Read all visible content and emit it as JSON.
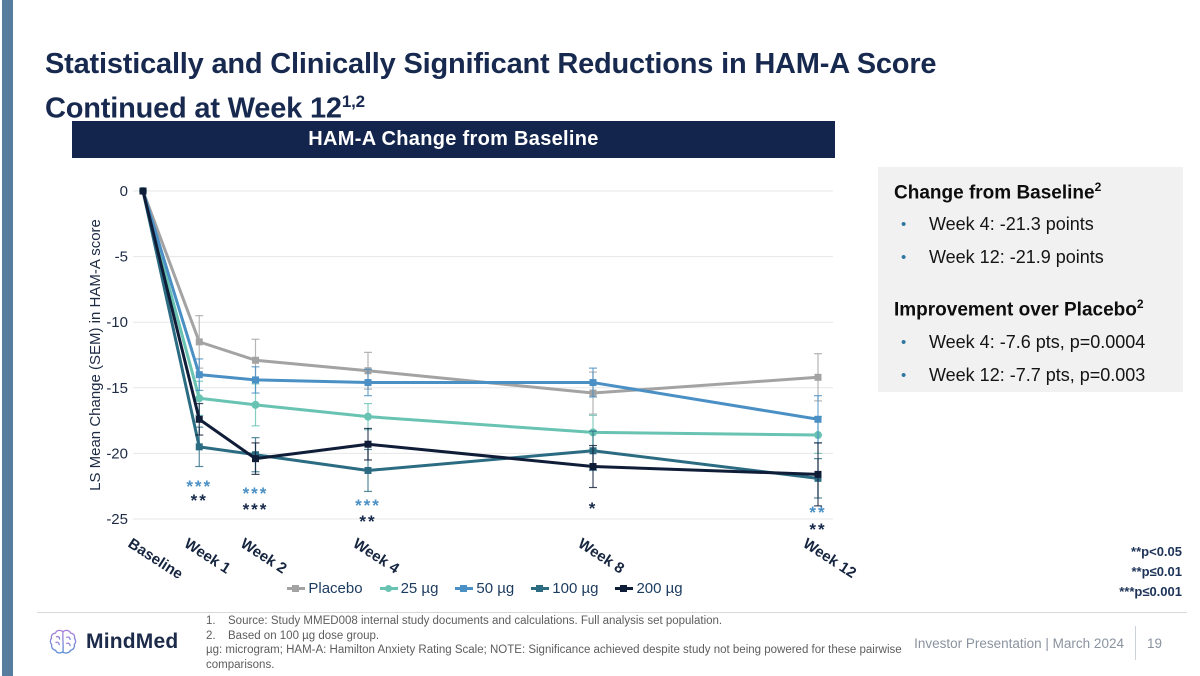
{
  "slide": {
    "title_line1": "Statistically and Clinically Significant Reductions in HAM-A Score",
    "title_line2": "Continued at Week 12",
    "title_superscript": "1,2",
    "accent_color": "#567d9e"
  },
  "chart_header": {
    "label": "HAM-A Change from Baseline",
    "bg_color": "#13254c"
  },
  "chart_data": {
    "type": "line",
    "title": "HAM-A Change from Baseline",
    "categories": [
      "Baseline",
      "Week 1",
      "Week 2",
      "Week 4",
      "Week 8",
      "Week 12"
    ],
    "x_weeks": [
      0,
      1,
      2,
      4,
      8,
      12
    ],
    "xlabel": "",
    "ylabel": "LS Mean Change (SEM) in HAM-A score",
    "ylim": [
      -25,
      0
    ],
    "yticks": [
      0,
      -5,
      -10,
      -15,
      -20,
      -25
    ],
    "grid": true,
    "legend_position": "bottom",
    "series": [
      {
        "name": "Placebo",
        "color": "#a3a3a3",
        "marker": "square",
        "values": [
          0,
          -11.5,
          -12.9,
          -13.7,
          -15.4,
          -14.2
        ],
        "sem": [
          0,
          2.0,
          1.6,
          1.4,
          1.6,
          1.8
        ]
      },
      {
        "name": "25 µg",
        "color": "#68c3b2",
        "marker": "circle",
        "values": [
          0,
          -15.8,
          -16.3,
          -17.2,
          -18.4,
          -18.6
        ],
        "sem": [
          0,
          1.3,
          1.6,
          1.0,
          1.3,
          1.4
        ]
      },
      {
        "name": "50 µg",
        "color": "#4a90c5",
        "marker": "square",
        "values": [
          0,
          -14.0,
          -14.4,
          -14.6,
          -14.6,
          -17.4
        ],
        "sem": [
          0,
          1.2,
          1.0,
          1.0,
          1.1,
          1.8
        ]
      },
      {
        "name": "100 µg",
        "color": "#2b6c83",
        "marker": "square",
        "values": [
          0,
          -19.5,
          -20.1,
          -21.3,
          -19.8,
          -21.9
        ],
        "sem": [
          0,
          1.5,
          1.3,
          1.6,
          1.5,
          1.5
        ]
      },
      {
        "name": "200 µg",
        "color": "#101d38",
        "marker": "square",
        "values": [
          0,
          -17.4,
          -20.4,
          -19.3,
          -21.0,
          -21.6
        ],
        "sem": [
          0,
          1.2,
          1.2,
          1.2,
          1.6,
          2.4
        ]
      }
    ],
    "significance": [
      {
        "week_index": 1,
        "marks": [
          {
            "text": "***",
            "color": "#4a90c5"
          },
          {
            "text": "**",
            "color": "#16294b"
          }
        ]
      },
      {
        "week_index": 2,
        "marks": [
          {
            "text": "***",
            "color": "#4a90c5"
          },
          {
            "text": "***",
            "color": "#16294b"
          }
        ]
      },
      {
        "week_index": 3,
        "marks": [
          {
            "text": "***",
            "color": "#4a90c5"
          },
          {
            "text": "**",
            "color": "#16294b"
          }
        ]
      },
      {
        "week_index": 4,
        "marks": [
          {
            "text": "*",
            "color": "#16294b"
          }
        ]
      },
      {
        "week_index": 5,
        "marks": [
          {
            "text": "**",
            "color": "#4a90c5"
          },
          {
            "text": "**",
            "color": "#16294b"
          }
        ]
      }
    ]
  },
  "callout": {
    "heading1": "Change from Baseline",
    "heading1_sup": "2",
    "bullets1": [
      "Week 4: -21.3 points",
      "Week 12: -21.9 points"
    ],
    "heading2": "Improvement over Placebo",
    "heading2_sup": "2",
    "bullets2": [
      "Week 4: -7.6 pts, p=0.0004",
      "Week 12: -7.7 pts, p=0.003"
    ],
    "bullet_glyph": "•",
    "bullet_color": "#2f76a0"
  },
  "significance_note": {
    "lines": [
      "**p<0.05",
      "**p≤0.01",
      "***p≤0.001"
    ]
  },
  "footer": {
    "logo_text": "MindMed",
    "footnote1_num": "1.",
    "footnote1": "Source: Study MMED008 internal study documents and calculations. Full analysis set population.",
    "footnote2_num": "2.",
    "footnote2": "Based on 100 µg dose group.",
    "footnote3": "µg: microgram; HAM-A: Hamilton Anxiety Rating Scale; NOTE: Significance achieved despite study not being powered for these pairwise comparisons.",
    "right_text": "Investor Presentation | March 2024",
    "page_number": "19"
  }
}
